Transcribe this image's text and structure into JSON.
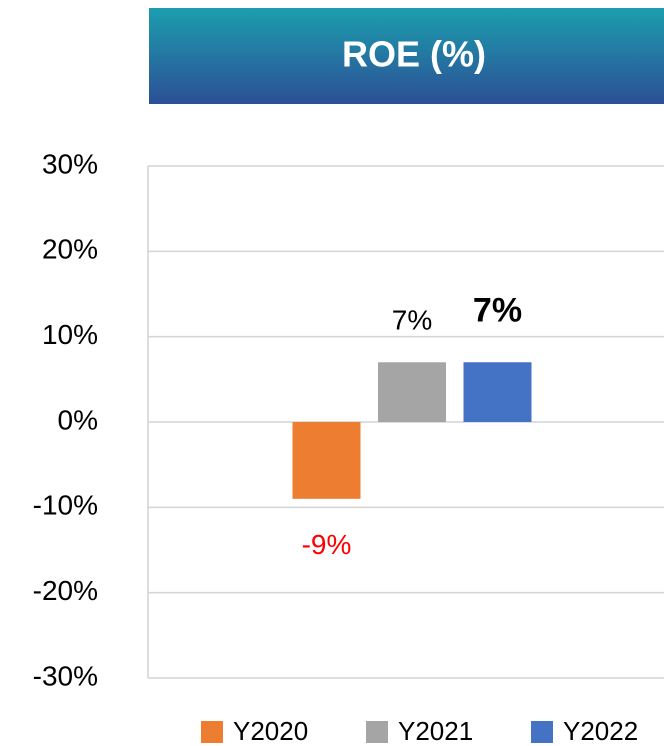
{
  "chart_data": {
    "type": "bar",
    "title": "ROE (%)",
    "categories": [
      null
    ],
    "series": [
      {
        "name": "Y2020",
        "color": "#ED7D31",
        "values": [
          -9
        ],
        "value_labels": [
          "-9%"
        ]
      },
      {
        "name": "Y2021",
        "color": "#A5A5A5",
        "values": [
          7
        ],
        "value_labels": [
          "7%"
        ]
      },
      {
        "name": "Y2022",
        "color": "#4472C4",
        "values": [
          7
        ],
        "value_labels": [
          "7%"
        ]
      }
    ],
    "ylim": [
      -30,
      30
    ],
    "yticks": [
      {
        "value": -30,
        "label": "-30%"
      },
      {
        "value": -20,
        "label": "-20%"
      },
      {
        "value": -10,
        "label": "-10%"
      },
      {
        "value": 0,
        "label": "0%"
      },
      {
        "value": 10,
        "label": "10%"
      },
      {
        "value": 20,
        "label": "20%"
      },
      {
        "value": 30,
        "label": "30%"
      }
    ],
    "grid": true,
    "legend": "bottom"
  }
}
